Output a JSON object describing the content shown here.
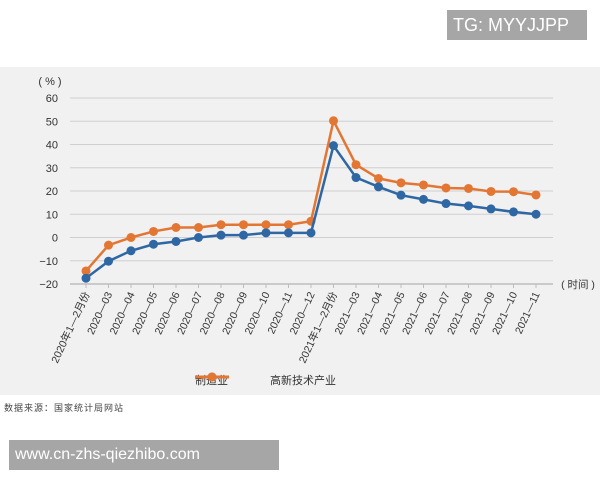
{
  "watermark_top": "TG: MYYJJPP",
  "watermark_bottom": "www.cn-zhs-qiezhibo.com",
  "source_note": "数据来源：国家统计局网站",
  "colors": {
    "manufacturing": "#2e67a3",
    "hightech": "#e37633",
    "grid": "#cfcfcf",
    "panel": "#f1f1f1"
  },
  "chart_data": {
    "type": "line",
    "title": "",
    "xlabel": "（时间）",
    "ylabel": "（%）",
    "ylim": [
      -20,
      60
    ],
    "yticks": [
      60,
      50,
      40,
      30,
      20,
      10,
      0,
      -10,
      -20
    ],
    "ytick_labels": [
      "60",
      "50",
      "40",
      "30",
      "20",
      "10",
      "0",
      "−10",
      "−20"
    ],
    "grid": true,
    "legend_position": "bottom",
    "categories": [
      "2020年1—2月份",
      "2020—03",
      "2020—04",
      "2020—05",
      "2020—06",
      "2020—07",
      "2020—08",
      "2020—09",
      "2020—10",
      "2020—11",
      "2020—12",
      "2021年1—2月份",
      "2021—03",
      "2021—04",
      "2021—05",
      "2021—06",
      "2021—07",
      "2021—08",
      "2021—09",
      "2021—10",
      "2021—11"
    ],
    "series": [
      {
        "name": "制造业",
        "color": "#2e67a3",
        "values": [
          -17.5,
          -10.2,
          -5.7,
          -2.9,
          -1.7,
          0.0,
          1.0,
          1.0,
          2.0,
          2.0,
          2.0,
          39.5,
          25.8,
          21.8,
          18.2,
          16.4,
          14.6,
          13.6,
          12.3,
          11.0,
          10.0
        ]
      },
      {
        "name": "高新技术产业",
        "color": "#e37633",
        "values": [
          -14.4,
          -3.3,
          0.0,
          2.6,
          4.3,
          4.3,
          5.5,
          5.5,
          5.5,
          5.5,
          7.0,
          50.2,
          31.3,
          25.4,
          23.5,
          22.6,
          21.3,
          21.1,
          19.8,
          19.7,
          18.3
        ]
      }
    ]
  },
  "legend": [
    {
      "label": "制造业",
      "color": "#2e67a3"
    },
    {
      "label": "高新技术产业",
      "color": "#e37633"
    }
  ]
}
